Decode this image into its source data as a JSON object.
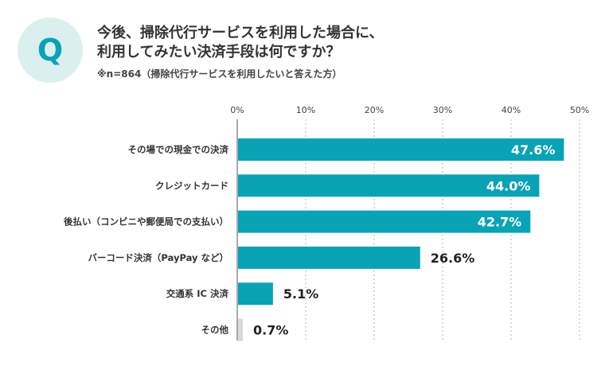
{
  "badge": {
    "letter": "Q"
  },
  "question": {
    "line1": "今後、掃除代行サービスを利用した場合に、",
    "line2": "利用してみたい決済手段は何ですか？"
  },
  "note": "※n=864（掃除代行サービスを利用したいと答えた方）",
  "colors": {
    "accent": "#0aa2b5",
    "other": "#d9d9d9",
    "badge_bg": "#dcefef"
  },
  "chart_data": {
    "type": "bar",
    "orientation": "horizontal",
    "categories": [
      "その場での現金での決済",
      "クレジットカード",
      "後払い（コンビニや郵便局での支払い）",
      "バーコード決済（PayPay など）",
      "交通系 IC 決済",
      "その他"
    ],
    "values": [
      47.6,
      44.0,
      42.7,
      26.6,
      5.1,
      0.7
    ],
    "value_labels": [
      "47.6%",
      "44.0%",
      "42.7%",
      "26.6%",
      "5.1%",
      "0.7%"
    ],
    "bar_colors": [
      "#0aa2b5",
      "#0aa2b5",
      "#0aa2b5",
      "#0aa2b5",
      "#0aa2b5",
      "#d9d9d9"
    ],
    "ticks": [
      0,
      10,
      20,
      30,
      40,
      50
    ],
    "tick_labels": [
      "0%",
      "10%",
      "20%",
      "30%",
      "40%",
      "50%"
    ],
    "xlim": [
      0,
      50
    ],
    "grid": true,
    "title": "",
    "xlabel": "",
    "ylabel": ""
  }
}
